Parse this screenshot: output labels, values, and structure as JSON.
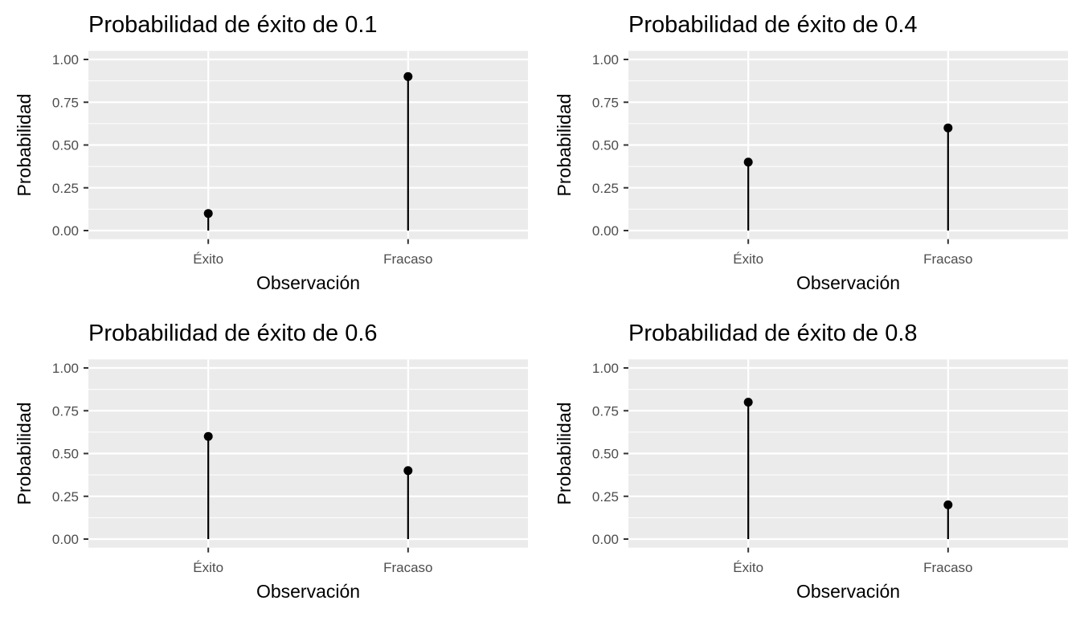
{
  "chart_data": [
    {
      "type": "lollipop",
      "title": "Probabilidad de éxito de 0.1",
      "xlabel": "Observación",
      "ylabel": "Probabilidad",
      "categories": [
        "Éxito",
        "Fracaso"
      ],
      "values": [
        0.1,
        0.9
      ],
      "ylim": [
        0,
        1
      ],
      "yticks": [
        "0.00",
        "0.25",
        "0.50",
        "0.75",
        "1.00"
      ],
      "grid": true
    },
    {
      "type": "lollipop",
      "title": "Probabilidad de éxito de 0.4",
      "xlabel": "Observación",
      "ylabel": "Probabilidad",
      "categories": [
        "Éxito",
        "Fracaso"
      ],
      "values": [
        0.4,
        0.6
      ],
      "ylim": [
        0,
        1
      ],
      "yticks": [
        "0.00",
        "0.25",
        "0.50",
        "0.75",
        "1.00"
      ],
      "grid": true
    },
    {
      "type": "lollipop",
      "title": "Probabilidad de éxito de 0.6",
      "xlabel": "Observación",
      "ylabel": "Probabilidad",
      "categories": [
        "Éxito",
        "Fracaso"
      ],
      "values": [
        0.6,
        0.4
      ],
      "ylim": [
        0,
        1
      ],
      "yticks": [
        "0.00",
        "0.25",
        "0.50",
        "0.75",
        "1.00"
      ],
      "grid": true
    },
    {
      "type": "lollipop",
      "title": "Probabilidad de éxito de 0.8",
      "xlabel": "Observación",
      "ylabel": "Probabilidad",
      "categories": [
        "Éxito",
        "Fracaso"
      ],
      "values": [
        0.8,
        0.2
      ],
      "ylim": [
        0,
        1
      ],
      "yticks": [
        "0.00",
        "0.25",
        "0.50",
        "0.75",
        "1.00"
      ],
      "grid": true
    }
  ],
  "colors": {
    "panel": "#EBEBEB",
    "grid": "#FFFFFF",
    "mark": "#000000",
    "tick_text": "#4D4D4D"
  }
}
